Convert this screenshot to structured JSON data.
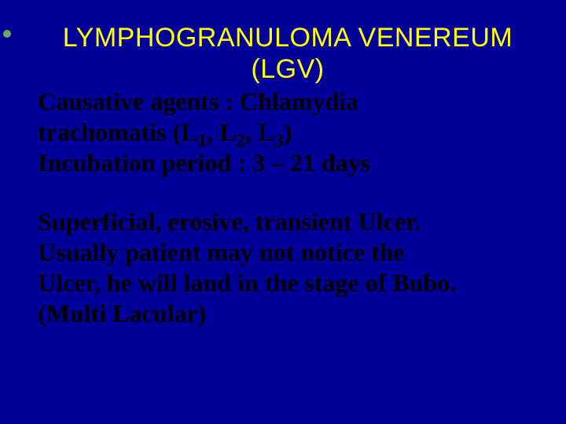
{
  "slide": {
    "background_color": "#000099",
    "title": {
      "line1": "LYMPHOGRANULOMA VENEREUM",
      "line2": "(LGV)",
      "color": "#ffff00",
      "font_family": "Arial",
      "font_size_pt": 34,
      "font_weight": "normal"
    },
    "body": {
      "color": "#000000",
      "font_family": "Times New Roman",
      "font_size_pt": 32,
      "font_weight": "bold",
      "para1": {
        "l1a": "Causative agents   :   Chlamydia",
        "l1b_pre": "trachomatis (L",
        "l1b_s1": "1",
        "l1b_m1": ", L",
        "l1b_s2": "2",
        "l1b_m2": ", L",
        "l1b_s3": "3",
        "l1b_post": ")",
        "l2": "Incubation period   :  3 – 21 days"
      },
      "para2": {
        "l1": "Superficial, erosive, transient Ulcer.",
        "l2": "Usually patient may not notice the",
        "l3": "Ulcer, he will land in the stage of Bubo.",
        "l4": "(Multi Lacular)"
      }
    },
    "accent_dot_color": "#66aa66"
  }
}
